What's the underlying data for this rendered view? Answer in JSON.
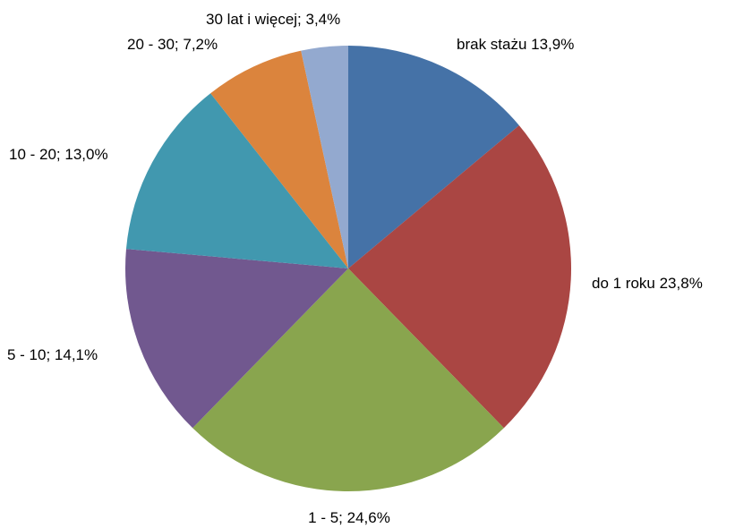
{
  "chart_data": {
    "type": "pie",
    "title": "",
    "start_angle_deg": 0,
    "direction": "clockwise",
    "slices": [
      {
        "label": "brak stażu",
        "value": 13.9,
        "display": "brak stażu 13,9%",
        "color": "#4572A7"
      },
      {
        "label": "do 1 roku",
        "value": 23.8,
        "display": "do 1 roku 23,8%",
        "color": "#AA4643"
      },
      {
        "label": "1 - 5",
        "value": 24.6,
        "display": "1 - 5; 24,6%",
        "color": "#89A54E"
      },
      {
        "label": "5 - 10",
        "value": 14.1,
        "display": "5 - 10; 14,1%",
        "color": "#71588F"
      },
      {
        "label": "10 - 20",
        "value": 13.0,
        "display": "10 - 20; 13,0%",
        "color": "#4198AF"
      },
      {
        "label": "20 - 30",
        "value": 7.2,
        "display": "20 - 30; 7,2%",
        "color": "#DB843D"
      },
      {
        "label": "30 lat i więcej",
        "value": 3.4,
        "display": "30 lat i więcej; 3,4%",
        "color": "#93A9CF"
      }
    ]
  }
}
